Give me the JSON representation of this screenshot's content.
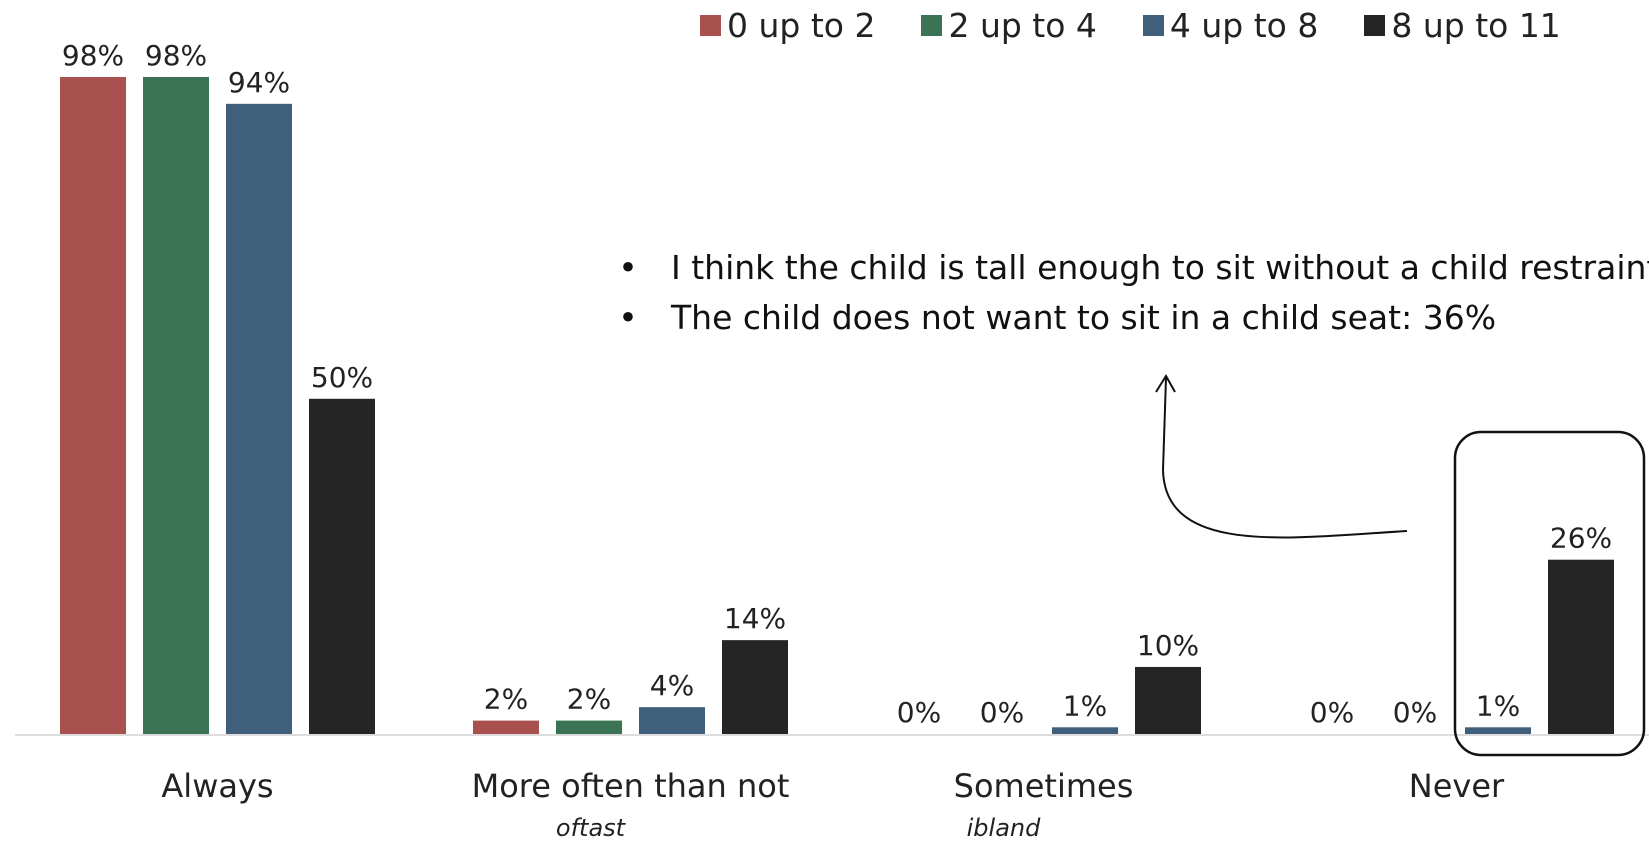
{
  "colors": {
    "series": [
      "#a9514f",
      "#3a7454",
      "#3f5f7a",
      "#252525"
    ],
    "baseline": "#dddddd",
    "text": "#222222"
  },
  "chart_data": {
    "type": "bar",
    "categories": [
      "Always",
      "More often than not",
      "Sometimes",
      "Never"
    ],
    "category_sublabels": [
      "",
      "oftast",
      "ibland",
      ""
    ],
    "series": [
      {
        "name": "0 up to 2",
        "values": [
          98,
          2,
          0,
          0
        ]
      },
      {
        "name": "2 up to 4",
        "values": [
          98,
          2,
          0,
          0
        ]
      },
      {
        "name": "4 up to 8",
        "values": [
          94,
          4,
          1,
          1
        ]
      },
      {
        "name": "8 up to 11",
        "values": [
          50,
          14,
          10,
          26
        ]
      }
    ],
    "data_labels": [
      [
        "98%",
        "98%",
        "94%",
        "50%"
      ],
      [
        "2%",
        "2%",
        "4%",
        "14%"
      ],
      [
        "0%",
        "0%",
        "1%",
        "10%"
      ],
      [
        "0%",
        "0%",
        "1%",
        "26%"
      ]
    ],
    "value_format": "percent",
    "ylim": [
      0,
      100
    ],
    "grid": false,
    "legend_position": "top-right",
    "highlight": {
      "category": "Never",
      "series": [
        "4 up to 8",
        "8 up to 11"
      ]
    }
  },
  "annotation": {
    "bullets": [
      "I think the child is tall enough to sit without a child restraint",
      "The child does not want to sit in a child seat: 36%"
    ],
    "bullet_glyph": "•",
    "arrow": "curved-arrow-icon"
  }
}
